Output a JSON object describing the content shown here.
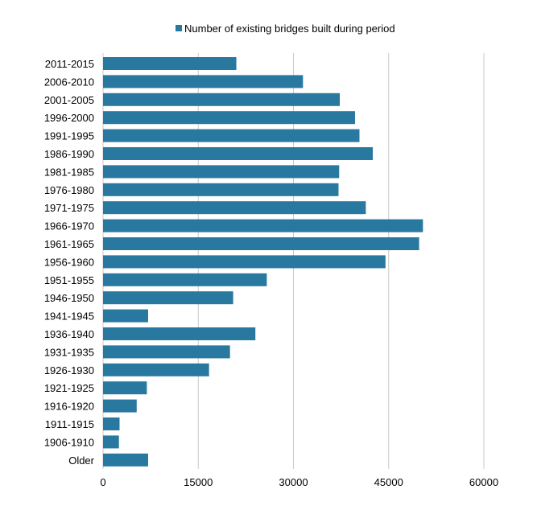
{
  "chart_data": {
    "type": "bar",
    "orientation": "horizontal",
    "legend": {
      "position": "top",
      "label": "Number of existing bridges built during period"
    },
    "categories": [
      "2011-2015",
      "2006-2010",
      "2001-2005",
      "1996-2000",
      "1991-1995",
      "1986-1990",
      "1981-1985",
      "1976-1980",
      "1971-1975",
      "1966-1970",
      "1961-1965",
      "1956-1960",
      "1951-1955",
      "1946-1950",
      "1941-1945",
      "1936-1940",
      "1931-1935",
      "1926-1930",
      "1921-1925",
      "1916-1920",
      "1911-1915",
      "1906-1910",
      "Older"
    ],
    "series": [
      {
        "name": "Number of existing bridges built during period",
        "values": [
          21000,
          31500,
          37300,
          39700,
          40400,
          42500,
          37200,
          37100,
          41400,
          50400,
          49800,
          44500,
          25800,
          20500,
          7100,
          24000,
          20000,
          16700,
          6900,
          5300,
          2600,
          2500,
          7100
        ],
        "color": "#2878a0"
      }
    ],
    "xlim": [
      0,
      60000
    ],
    "xticks": [
      0,
      15000,
      30000,
      45000,
      60000
    ],
    "xtick_labels": [
      "0",
      "15000",
      "30000",
      "45000",
      "60000"
    ],
    "grid": "vertical"
  }
}
